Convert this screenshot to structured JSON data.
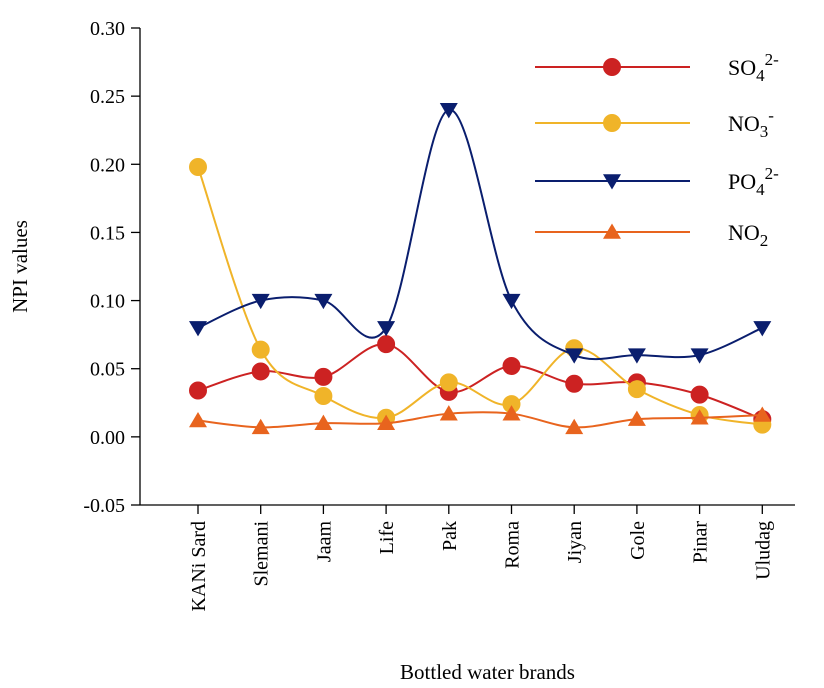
{
  "chart_data": {
    "type": "line",
    "xlabel": "Bottled water brands",
    "ylabel": "NPI values",
    "categories": [
      "KANi Sard",
      "Slemani",
      "Jaam",
      "Life",
      "Pak",
      "Roma",
      "Jiyan",
      "Gole",
      "Pinar",
      "Uludag"
    ],
    "ylim": [
      -0.05,
      0.3
    ],
    "yticks": [
      "-0.05",
      "0.00",
      "0.05",
      "0.10",
      "0.15",
      "0.20",
      "0.25",
      "0.30"
    ],
    "grid": false,
    "legend_position": "top-right",
    "series": [
      {
        "name": "SO42-",
        "legend_base": "SO",
        "legend_sub": "4",
        "legend_sup": "2-",
        "color": "#cc2222",
        "marker": "circle",
        "values": [
          0.034,
          0.048,
          0.044,
          0.068,
          0.033,
          0.052,
          0.039,
          0.04,
          0.031,
          0.013
        ]
      },
      {
        "name": "NO3-",
        "legend_base": "NO",
        "legend_sub": "3",
        "legend_sup": "-",
        "color": "#f0b429",
        "marker": "circle",
        "values": [
          0.198,
          0.064,
          0.03,
          0.014,
          0.04,
          0.024,
          0.065,
          0.035,
          0.016,
          0.009
        ]
      },
      {
        "name": "PO42-",
        "legend_base": "PO",
        "legend_sub": "4",
        "legend_sup": "2-",
        "color": "#0a1e6e",
        "marker": "triangle-down",
        "values": [
          0.08,
          0.1,
          0.1,
          0.08,
          0.24,
          0.1,
          0.06,
          0.06,
          0.06,
          0.08
        ]
      },
      {
        "name": "NO2",
        "legend_base": "NO",
        "legend_sub": "2",
        "legend_sup": "",
        "color": "#e8641e",
        "marker": "triangle-up",
        "values": [
          0.012,
          0.007,
          0.01,
          0.01,
          0.017,
          0.017,
          0.007,
          0.013,
          0.014,
          0.016
        ]
      }
    ]
  }
}
